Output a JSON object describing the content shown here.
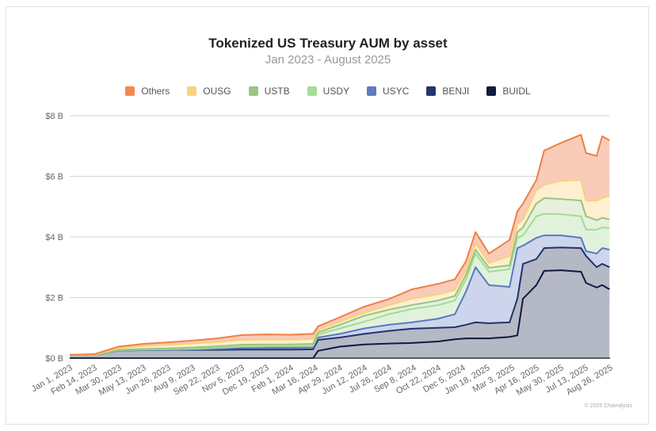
{
  "chart_data": {
    "type": "area",
    "stacked": true,
    "title": "Tokenized US Treasury AUM by asset",
    "subtitle": "Jan 2023 - August 2025",
    "xlabel": "",
    "ylabel": "",
    "ylim": [
      0,
      8
    ],
    "y_ticks": [
      0,
      2,
      4,
      6,
      8
    ],
    "y_tick_labels": [
      "$0 B",
      "$2 B",
      "$4 B",
      "$6 B",
      "$8 B"
    ],
    "grid": true,
    "legend_position": "top-center",
    "x_start": "Jan 1, 2023",
    "x_end_day": 968,
    "x_tick_labels": [
      "Jan 1, 2023",
      "Feb 14, 2023",
      "Mar 30, 2023",
      "May 13, 2023",
      "Jun 26, 2023",
      "Aug 9, 2023",
      "Sep 22, 2023",
      "Nov 5, 2023",
      "Dec 19, 2023",
      "Feb 1, 2024",
      "Mar 16, 2024",
      "Apr 29, 2024",
      "Jun 12, 2024",
      "Jul 26, 2024",
      "Sep 8, 2024",
      "Oct 22, 2024",
      "Dec 5, 2024",
      "Jan 18, 2025",
      "Mar 3, 2025",
      "Apr 16, 2025",
      "May 30, 2025",
      "Jul 13, 2025",
      "Aug 26, 2025"
    ],
    "x_tick_interval_days": 44,
    "x_days": [
      0,
      44,
      88,
      132,
      176,
      220,
      264,
      308,
      352,
      396,
      436,
      445,
      484,
      528,
      572,
      613,
      660,
      690,
      710,
      727,
      751,
      788,
      802,
      812,
      836,
      850,
      880,
      916,
      925,
      944,
      954,
      967
    ],
    "series": [
      {
        "name": "BUIDL",
        "fill": "#b5b9c6",
        "line": "#0e1a40",
        "values": [
          0,
          0,
          0,
          0,
          0,
          0,
          0,
          0,
          0,
          0,
          0,
          0.24,
          0.38,
          0.45,
          0.48,
          0.5,
          0.55,
          0.62,
          0.65,
          0.65,
          0.65,
          0.7,
          0.75,
          1.96,
          2.41,
          2.88,
          2.9,
          2.85,
          2.48,
          2.33,
          2.41,
          2.27
        ]
      },
      {
        "name": "BENJI",
        "fill": "#b5b9c6",
        "line": "#22336b",
        "values": [
          0.09,
          0.1,
          0.25,
          0.26,
          0.27,
          0.27,
          0.27,
          0.28,
          0.28,
          0.28,
          0.29,
          0.36,
          0.3,
          0.35,
          0.42,
          0.47,
          0.45,
          0.4,
          0.45,
          0.53,
          0.5,
          0.48,
          1.21,
          1.15,
          0.86,
          0.75,
          0.75,
          0.78,
          0.89,
          0.67,
          0.7,
          0.73
        ]
      },
      {
        "name": "USYC",
        "fill": "#cdd5ec",
        "line": "#5a79c2",
        "values": [
          0,
          0,
          0,
          0,
          0,
          0.01,
          0.03,
          0.05,
          0.06,
          0.06,
          0.06,
          0.08,
          0.12,
          0.18,
          0.2,
          0.21,
          0.3,
          0.43,
          1.1,
          1.82,
          1.26,
          1.17,
          1.67,
          0.6,
          0.7,
          0.42,
          0.4,
          0.34,
          0.16,
          0.45,
          0.52,
          0.58
        ]
      },
      {
        "name": "USDY",
        "fill": "#e1f2dc",
        "line": "#a6da94",
        "values": [
          0,
          0,
          0.01,
          0.02,
          0.02,
          0.03,
          0.04,
          0.05,
          0.05,
          0.05,
          0.06,
          0.1,
          0.18,
          0.22,
          0.35,
          0.44,
          0.45,
          0.45,
          0.4,
          0.45,
          0.44,
          0.58,
          0.34,
          0.34,
          0.71,
          0.71,
          0.7,
          0.71,
          0.71,
          0.79,
          0.68,
          0.71
        ]
      },
      {
        "name": "USTB",
        "fill": "#e6f0dc",
        "line": "#98c47e",
        "values": [
          0,
          0,
          0.01,
          0.02,
          0.03,
          0.04,
          0.05,
          0.06,
          0.06,
          0.06,
          0.06,
          0.07,
          0.12,
          0.2,
          0.15,
          0.13,
          0.15,
          0.15,
          0.15,
          0.13,
          0.13,
          0.13,
          0.19,
          0.26,
          0.42,
          0.52,
          0.5,
          0.52,
          0.44,
          0.31,
          0.32,
          0.29
        ]
      },
      {
        "name": "OUSG",
        "fill": "#fdefd0",
        "line": "#f7d179",
        "values": [
          0.01,
          0.01,
          0.06,
          0.1,
          0.12,
          0.13,
          0.14,
          0.16,
          0.16,
          0.16,
          0.16,
          0.08,
          0.1,
          0.1,
          0.15,
          0.21,
          0.2,
          0.2,
          0.15,
          0.22,
          0.16,
          0.31,
          0.26,
          0.27,
          0.44,
          0.44,
          0.6,
          0.68,
          0.52,
          0.65,
          0.65,
          0.78
        ]
      },
      {
        "name": "Others",
        "fill": "#f8ccb8",
        "line": "#ef7f45",
        "values": [
          0.01,
          0.02,
          0.05,
          0.07,
          0.08,
          0.1,
          0.12,
          0.16,
          0.17,
          0.16,
          0.17,
          0.12,
          0.15,
          0.2,
          0.2,
          0.31,
          0.35,
          0.35,
          0.3,
          0.36,
          0.31,
          0.53,
          0.42,
          0.52,
          0.34,
          1.13,
          1.25,
          1.49,
          1.57,
          1.47,
          2.04,
          1.83
        ]
      }
    ],
    "legend": [
      {
        "name": "Others",
        "color": "#f3884f"
      },
      {
        "name": "OUSG",
        "color": "#f9d27e"
      },
      {
        "name": "USTB",
        "color": "#9dc485"
      },
      {
        "name": "USDY",
        "color": "#a8dc97"
      },
      {
        "name": "USYC",
        "color": "#5f7cc3"
      },
      {
        "name": "BENJI",
        "color": "#243670"
      },
      {
        "name": "BUIDL",
        "color": "#111a3f"
      }
    ]
  },
  "footer": {
    "copyright": "© 2025 Chainalysis"
  }
}
